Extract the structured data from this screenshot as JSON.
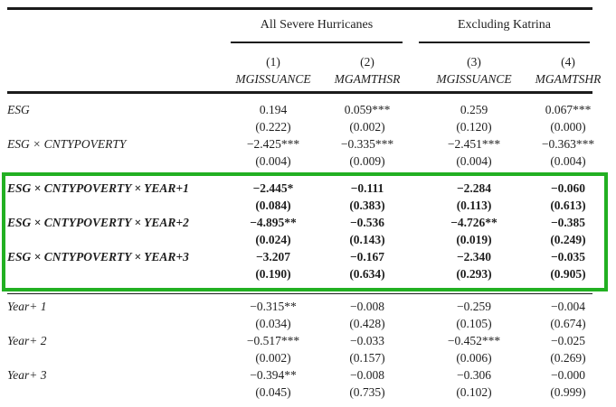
{
  "page": {
    "background": "#ffffff",
    "text_color": "#1f1f1f",
    "rule_color": "#1b1b1b",
    "highlight_color": "#22b022"
  },
  "table": {
    "groups": [
      {
        "label": "All Severe Hurricanes"
      },
      {
        "label": "Excluding Katrina"
      }
    ],
    "columns": [
      {
        "number": "(1)",
        "name": "MGISSUANCE"
      },
      {
        "number": "(2)",
        "name": "MGAMTHSR"
      },
      {
        "number": "(3)",
        "name": "MGISSUANCE"
      },
      {
        "number": "(4)",
        "name": "MGAMTSHR"
      }
    ],
    "sections": [
      {
        "highlighted": false,
        "rows": [
          {
            "label": "ESG",
            "values": [
              "0.194",
              "0.059***",
              "0.259",
              "0.067***"
            ],
            "pvalues": [
              "(0.222)",
              "(0.002)",
              "(0.120)",
              "(0.000)"
            ]
          },
          {
            "label": "ESG × CNTYPOVERTY",
            "values": [
              "−2.425***",
              "−0.335***",
              "−2.451***",
              "−0.363***"
            ],
            "pvalues": [
              "(0.004)",
              "(0.009)",
              "(0.004)",
              "(0.004)"
            ]
          }
        ]
      },
      {
        "highlighted": true,
        "rows": [
          {
            "label": "ESG × CNTYPOVERTY × YEAR+1",
            "values": [
              "−2.445*",
              "−0.111",
              "−2.284",
              "−0.060"
            ],
            "pvalues": [
              "(0.084)",
              "(0.383)",
              "(0.113)",
              "(0.613)"
            ]
          },
          {
            "label": "ESG × CNTYPOVERTY × YEAR+2",
            "values": [
              "−4.895**",
              "−0.536",
              "−4.726**",
              "−0.385"
            ],
            "pvalues": [
              "(0.024)",
              "(0.143)",
              "(0.019)",
              "(0.249)"
            ]
          },
          {
            "label": "ESG × CNTYPOVERTY × YEAR+3",
            "values": [
              "−3.207",
              "−0.167",
              "−2.340",
              "−0.035"
            ],
            "pvalues": [
              "(0.190)",
              "(0.634)",
              "(0.293)",
              "(0.905)"
            ]
          }
        ]
      },
      {
        "highlighted": false,
        "rows": [
          {
            "label": "Year+ 1",
            "values": [
              "−0.315**",
              "−0.008",
              "−0.259",
              "−0.004"
            ],
            "pvalues": [
              "(0.034)",
              "(0.428)",
              "(0.105)",
              "(0.674)"
            ]
          },
          {
            "label": "Year+ 2",
            "values": [
              "−0.517***",
              "−0.033",
              "−0.452***",
              "−0.025"
            ],
            "pvalues": [
              "(0.002)",
              "(0.157)",
              "(0.006)",
              "(0.269)"
            ]
          },
          {
            "label": "Year+ 3",
            "values": [
              "−0.394**",
              "−0.008",
              "−0.306",
              "−0.000"
            ],
            "pvalues": [
              "(0.045)",
              "(0.735)",
              "(0.102)",
              "(0.999)"
            ]
          }
        ]
      }
    ]
  }
}
